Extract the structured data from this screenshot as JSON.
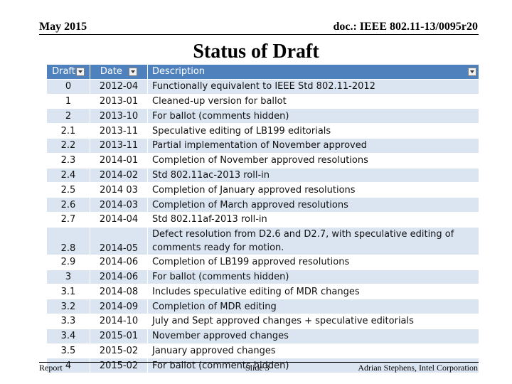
{
  "header": {
    "date": "May 2015",
    "doc": "doc.: IEEE 802.11-13/0095r20"
  },
  "title": "Status of Draft",
  "table": {
    "columns": [
      "Draft",
      "Date",
      "Description"
    ],
    "rows": [
      [
        "0",
        "2012-04",
        "Functionally equivalent to IEEE Std 802.11-2012"
      ],
      [
        "1",
        "2013-01",
        "Cleaned-up version for ballot"
      ],
      [
        "2",
        "2013-10",
        "For ballot (comments hidden)"
      ],
      [
        "2.1",
        "2013-11",
        "Speculative editing of LB199 editorials"
      ],
      [
        "2.2",
        "2013-11",
        "Partial implementation of November approved"
      ],
      [
        "2.3",
        "2014-01",
        "Completion of November approved resolutions"
      ],
      [
        "2.4",
        "2014-02",
        "Std 802.11ac-2013 roll-in"
      ],
      [
        "2.5",
        "2014 03",
        "Completion of January approved resolutions"
      ],
      [
        "2.6",
        "2014-03",
        "Completion of March approved resolutions"
      ],
      [
        "2.7",
        "2014-04",
        "Std 802.11af-2013 roll-in"
      ],
      [
        "2.8",
        "2014-05",
        "Defect resolution from D2.6 and D2.7, with speculative editing of comments ready for motion."
      ],
      [
        "2.9",
        "2014-06",
        "Completion of LB199 approved resolutions"
      ],
      [
        "3",
        "2014-06",
        "For ballot (comments hidden)"
      ],
      [
        "3.1",
        "2014-08",
        "Includes speculative  editing of MDR changes"
      ],
      [
        "3.2",
        "2014-09",
        "Completion of MDR editing"
      ],
      [
        "3.3",
        "2014-10",
        "July and Sept approved changes + speculative editorials"
      ],
      [
        "3.4",
        "2015-01",
        "November approved changes"
      ],
      [
        "3.5",
        "2015-02",
        "January approved changes"
      ],
      [
        "4",
        "2015-02",
        "For ballot (comments hidden)"
      ]
    ]
  },
  "footer": {
    "left": "Report",
    "center": "Slide 3",
    "right": "Adrian Stephens, Intel Corporation"
  }
}
